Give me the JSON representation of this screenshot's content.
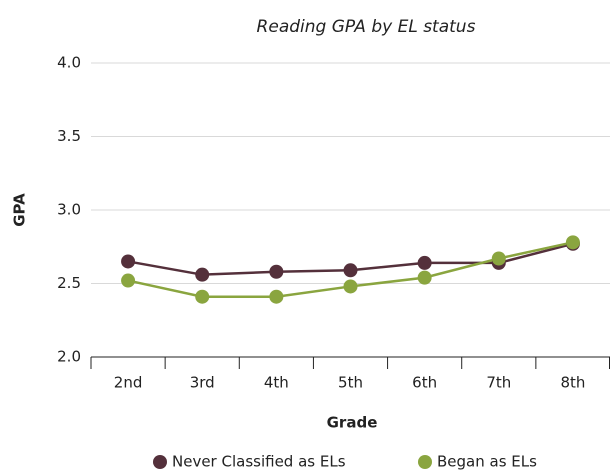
{
  "chart_data": {
    "type": "line",
    "title": "Reading GPA by EL status",
    "x_label": "Grade",
    "y_label": "GPA",
    "categories": [
      "2nd",
      "3rd",
      "4th",
      "5th",
      "6th",
      "7th",
      "8th"
    ],
    "series": [
      {
        "name": "Never Classified as ELs",
        "color": "#54303b",
        "values": [
          2.65,
          2.56,
          2.58,
          2.59,
          2.64,
          2.64,
          2.77
        ]
      },
      {
        "name": "Began as ELs",
        "color": "#8aa53f",
        "values": [
          2.52,
          2.41,
          2.41,
          2.48,
          2.54,
          2.67,
          2.78
        ]
      }
    ],
    "ylim": [
      2,
      4
    ],
    "yticks": [
      {
        "value": 2,
        "label": "2.0"
      },
      2.5,
      {
        "value": 3,
        "label": "3.0"
      },
      3.5,
      {
        "value": 4,
        "label": "4.0"
      }
    ],
    "grid": true,
    "legend": "bottom"
  }
}
